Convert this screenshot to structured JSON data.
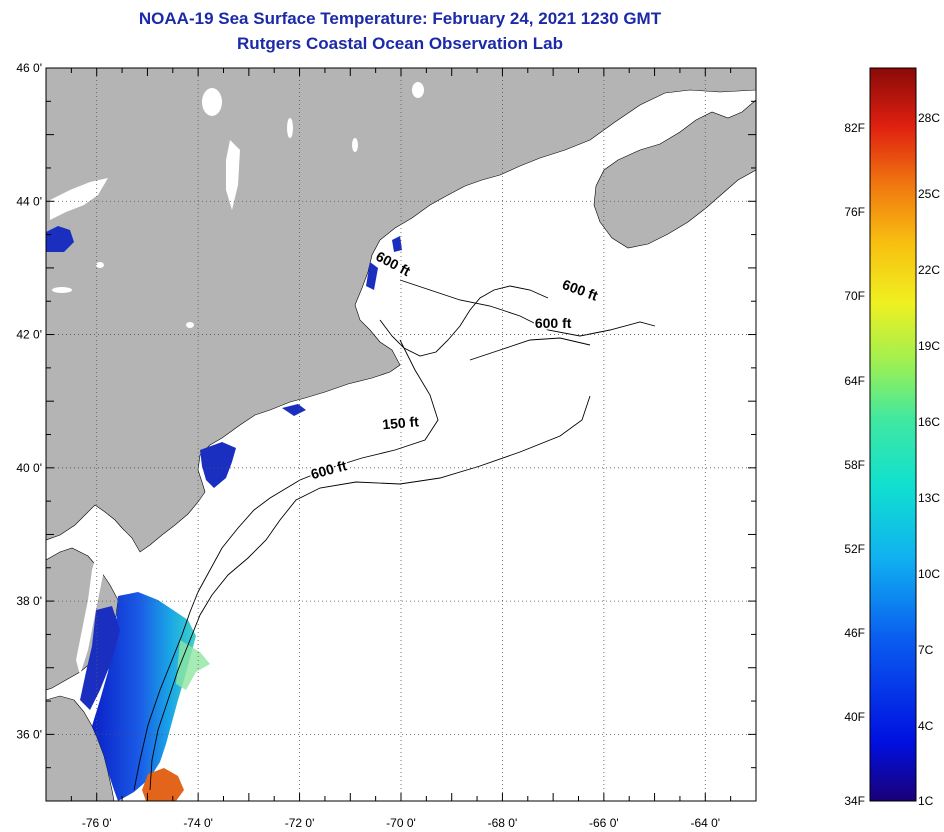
{
  "title": {
    "line1": "NOAA-19 Sea Surface Temperature:  February 24, 2021 1230 GMT",
    "line2": "Rutgers Coastal Ocean Observation Lab"
  },
  "map": {
    "lat_labels": [
      "46 0'",
      "44 0'",
      "42 0'",
      "40 0'",
      "38 0'",
      "36 0'"
    ],
    "lon_labels": [
      "-76 0'",
      "-74 0'",
      "-72 0'",
      "-70 0'",
      "-68 0'",
      "-66 0'",
      "-64 0'"
    ],
    "lat_values": [
      46,
      44,
      42,
      40,
      38,
      36
    ],
    "lon_values": [
      -76,
      -74,
      -72,
      -70,
      -68,
      -66,
      -64
    ],
    "extent": {
      "lon_min": -77,
      "lon_max": -63,
      "lat_min": 35,
      "lat_max": 46
    },
    "contour_labels": [
      {
        "text": "600 ft",
        "lon": -70.2,
        "lat": 43.0,
        "angle": 28
      },
      {
        "text": "600 ft",
        "lon": -66.5,
        "lat": 42.6,
        "angle": 20
      },
      {
        "text": "600 ft",
        "lon": -67.0,
        "lat": 42.1,
        "angle": 0
      },
      {
        "text": "150 ft",
        "lon": -70.0,
        "lat": 40.6,
        "angle": -5
      },
      {
        "text": "600 ft",
        "lon": -71.4,
        "lat": 39.9,
        "angle": -15
      }
    ],
    "colors": {
      "land": "#b4b4b4",
      "ocean": "#ffffff",
      "warm_patch": "#e2651b"
    }
  },
  "legend": {
    "f_labels": [
      "82F",
      "76F",
      "70F",
      "64F",
      "58F",
      "52F",
      "46F",
      "40F",
      "34F"
    ],
    "c_labels": [
      "28C",
      "25C",
      "22C",
      "19C",
      "16C",
      "13C",
      "10C",
      "7C",
      "4C",
      "1C"
    ]
  }
}
